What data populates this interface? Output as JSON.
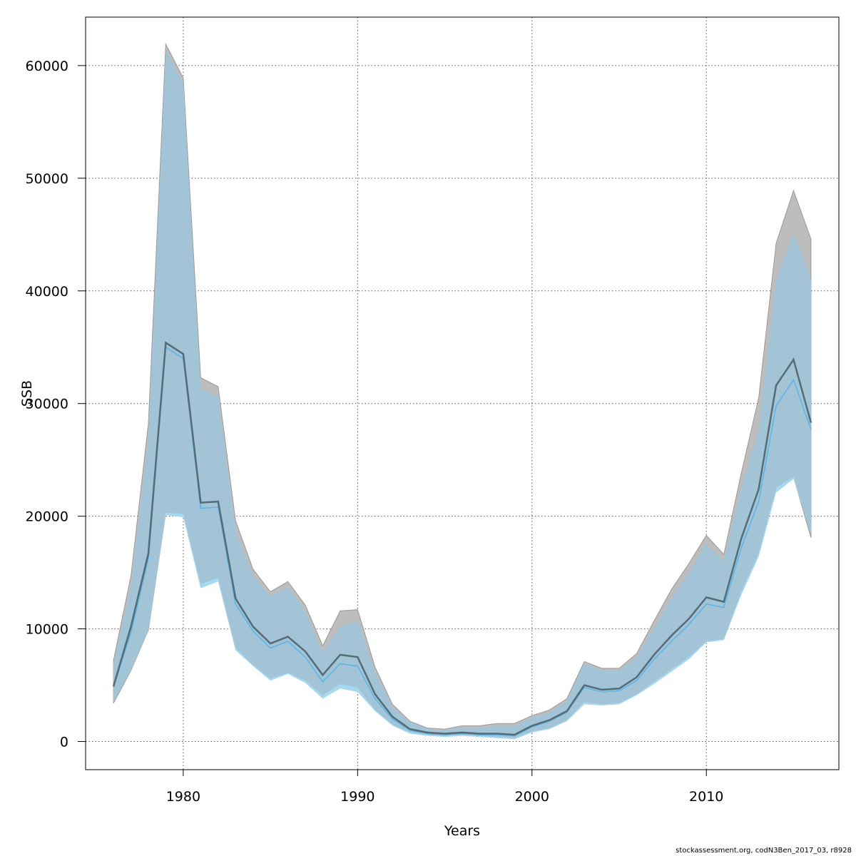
{
  "chart_data": {
    "type": "area",
    "xlabel": "Years",
    "ylabel": "SSB",
    "xlim": [
      1974.4,
      1977.0
    ],
    "ylim": [
      -2500,
      64300
    ],
    "xticks": [
      1980,
      1990,
      2000,
      2010
    ],
    "yticks": [
      0,
      10000,
      20000,
      30000,
      40000,
      50000,
      60000
    ],
    "grid": true,
    "colors": {
      "outer_band": "#bdbdbd",
      "outer_line": "#556b78",
      "inner_band": "#a6d8f2",
      "inner_line": "#5ab4e6",
      "overlap_band": "#a2c4d6",
      "grid": "#555555"
    },
    "x": [
      1976,
      1977,
      1978,
      1979,
      1980,
      1981,
      1982,
      1983,
      1984,
      1985,
      1986,
      1987,
      1988,
      1989,
      1990,
      1991,
      1992,
      1993,
      1994,
      1995,
      1996,
      1997,
      1998,
      1999,
      2000,
      2001,
      2002,
      2003,
      2004,
      2005,
      2006,
      2007,
      2008,
      2009,
      2010,
      2011,
      2012,
      2013,
      2014,
      2015,
      2016
    ],
    "series": [
      {
        "values": [
          4900,
          10200,
          16700,
          35400,
          34400,
          21200,
          21300,
          12700,
          10200,
          8700,
          9300,
          8000,
          5900,
          7700,
          7500,
          4200,
          2200,
          1100,
          800,
          700,
          800,
          700,
          700,
          600,
          1400,
          1900,
          2700,
          5000,
          4600,
          4700,
          5700,
          7700,
          9400,
          10900,
          12800,
          12400,
          18000,
          22400,
          31600,
          33900,
          28300
        ],
        "upper": [
          7200,
          14700,
          28200,
          61900,
          58900,
          32300,
          31500,
          19600,
          15300,
          13300,
          14200,
          12100,
          8500,
          11600,
          11700,
          6600,
          3300,
          1800,
          1200,
          1100,
          1400,
          1400,
          1600,
          1600,
          2300,
          2800,
          3800,
          7100,
          6500,
          6500,
          7800,
          10700,
          13500,
          15800,
          18300,
          16600,
          23800,
          30500,
          44200,
          48900,
          44600
        ],
        "lower": [
          3400,
          6300,
          9900,
          20300,
          20200,
          14000,
          14500,
          8300,
          6800,
          5600,
          6100,
          5400,
          4100,
          5100,
          4800,
          2800,
          1500,
          800,
          600,
          500,
          600,
          500,
          400,
          300,
          900,
          1200,
          1900,
          3500,
          3300,
          3400,
          4200,
          5300,
          6400,
          7500,
          8900,
          9100,
          13300,
          16700,
          22500,
          23500,
          18100
        ]
      },
      {
        "values": [
          4800,
          9700,
          16200,
          35000,
          34000,
          20700,
          20800,
          12200,
          9800,
          8300,
          8900,
          7500,
          5300,
          6900,
          6700,
          3800,
          2000,
          1000,
          700,
          600,
          700,
          600,
          600,
          500,
          1300,
          1800,
          2600,
          4800,
          4400,
          4500,
          5400,
          7300,
          8900,
          10400,
          12200,
          11900,
          17200,
          21300,
          29800,
          32100,
          27700
        ],
        "upper": [
          6900,
          13800,
          26700,
          61300,
          58400,
          31400,
          30600,
          18700,
          14700,
          12900,
          13700,
          11500,
          7900,
          10200,
          10700,
          6100,
          3100,
          1700,
          1100,
          1000,
          1200,
          1200,
          1400,
          1400,
          2100,
          2600,
          3600,
          6900,
          6300,
          6300,
          7500,
          10000,
          12700,
          15000,
          17500,
          16000,
          22400,
          27600,
          40900,
          45100,
          41000
        ],
        "lower": [
          3500,
          6300,
          9900,
          20100,
          19900,
          13600,
          14200,
          8100,
          6700,
          5400,
          6000,
          5200,
          3800,
          4700,
          4400,
          2700,
          1400,
          700,
          500,
          400,
          500,
          400,
          300,
          200,
          800,
          1100,
          1800,
          3300,
          3200,
          3300,
          4100,
          5100,
          6200,
          7300,
          8800,
          9000,
          13000,
          16400,
          22100,
          23300,
          18500
        ]
      }
    ]
  },
  "footer": "stockassessment.org, codN3Ben_2017_03, r8928"
}
